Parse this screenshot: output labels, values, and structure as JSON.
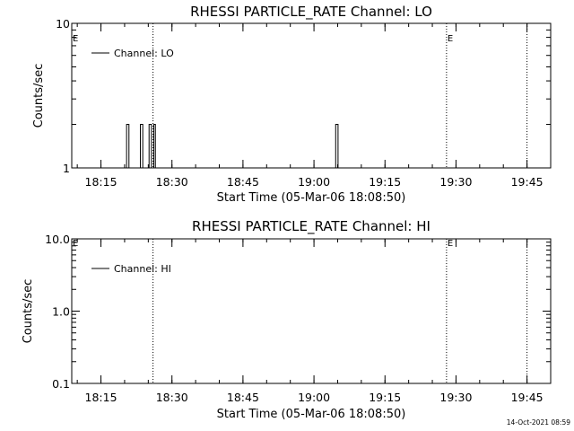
{
  "footer": {
    "timestamp": "14-Oct-2021 08:59"
  },
  "chart_data": [
    {
      "type": "line",
      "title": "RHESSI PARTICLE_RATE Channel: LO",
      "xlabel": "Start Time (05-Mar-06 18:08:50)",
      "ylabel": "Counts/sec",
      "y_scale": "log",
      "ylim": [
        1,
        10
      ],
      "y_ticks": [
        {
          "value": 1,
          "label": "1"
        },
        {
          "value": 10,
          "label": "10"
        }
      ],
      "x_range": [
        "18:08:50",
        "19:50:00"
      ],
      "x_ticks": [
        "18:15",
        "18:30",
        "18:45",
        "19:00",
        "19:15",
        "19:30",
        "19:45"
      ],
      "legend": {
        "position": "top-left",
        "entries": [
          "Channel: LO"
        ]
      },
      "event_markers": [
        {
          "time": "18:08:50",
          "label": "E"
        },
        {
          "time": "19:28:00",
          "label": "E"
        }
      ],
      "dotted_lines": [
        "18:26:00",
        "19:28:00",
        "19:45:00"
      ],
      "series": [
        {
          "name": "Channel: LO",
          "spikes": [
            {
              "start": "18:20:25",
              "end": "18:20:55",
              "value": 2
            },
            {
              "start": "18:23:20",
              "end": "18:23:50",
              "value": 2
            },
            {
              "start": "18:25:10",
              "end": "18:25:40",
              "value": 2
            },
            {
              "start": "18:26:10",
              "end": "18:26:30",
              "value": 2
            },
            {
              "start": "19:04:35",
              "end": "19:05:05",
              "value": 2
            }
          ]
        }
      ]
    },
    {
      "type": "line",
      "title": "RHESSI PARTICLE_RATE Channel: HI",
      "xlabel": "Start Time (05-Mar-06 18:08:50)",
      "ylabel": "Counts/sec",
      "y_scale": "log",
      "ylim": [
        0.1,
        10
      ],
      "y_ticks": [
        {
          "value": 0.1,
          "label": "0.1"
        },
        {
          "value": 1,
          "label": "1.0"
        },
        {
          "value": 10,
          "label": "10.0"
        }
      ],
      "x_range": [
        "18:08:50",
        "19:50:00"
      ],
      "x_ticks": [
        "18:15",
        "18:30",
        "18:45",
        "19:00",
        "19:15",
        "19:30",
        "19:45"
      ],
      "legend": {
        "position": "top-left",
        "entries": [
          "Channel: HI"
        ]
      },
      "event_markers": [
        {
          "time": "18:08:50",
          "label": "E"
        },
        {
          "time": "19:28:00",
          "label": "E"
        }
      ],
      "dotted_lines": [
        "18:26:00",
        "19:28:00",
        "19:45:00"
      ],
      "series": [
        {
          "name": "Channel: HI",
          "spikes": []
        }
      ]
    }
  ]
}
